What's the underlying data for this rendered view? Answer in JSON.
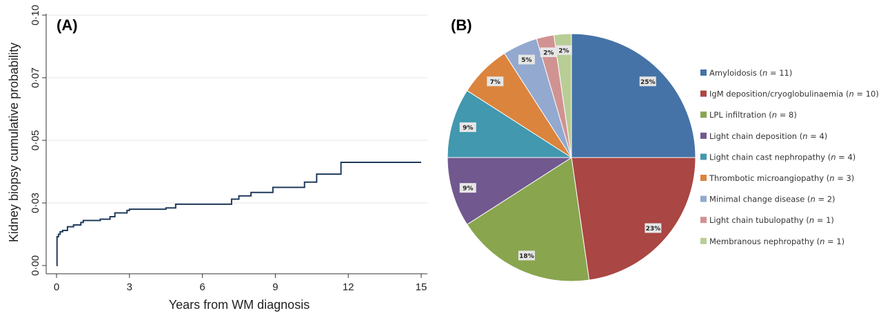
{
  "chart_data": [
    {
      "type": "line",
      "panel_label": "(A)",
      "title": "",
      "xlabel": "Years from WM diagnosis",
      "ylabel": "Kidney biopsy cumulative probability",
      "xlim": [
        0,
        15
      ],
      "ylim": [
        0,
        0.1
      ],
      "x_ticks": [
        0,
        3,
        6,
        9,
        12,
        15
      ],
      "x_tick_labels": [
        "0",
        "3",
        "6",
        "9",
        "12",
        "15"
      ],
      "y_ticks": [
        0,
        0.025,
        0.05,
        0.075,
        0.1
      ],
      "y_tick_labels": [
        "0·00",
        "0·03",
        "0·05",
        "0·07",
        "0·10"
      ],
      "grid": "horizontal",
      "color": "#1f3a5a",
      "step_points": [
        [
          0,
          0
        ],
        [
          0.02,
          0.0115
        ],
        [
          0.08,
          0.0125
        ],
        [
          0.15,
          0.0135
        ],
        [
          0.25,
          0.014
        ],
        [
          0.45,
          0.0155
        ],
        [
          0.7,
          0.0162
        ],
        [
          1.0,
          0.0172
        ],
        [
          1.1,
          0.018
        ],
        [
          1.8,
          0.0185
        ],
        [
          2.2,
          0.0195
        ],
        [
          2.4,
          0.021
        ],
        [
          2.9,
          0.022
        ],
        [
          3.0,
          0.0225
        ],
        [
          4.5,
          0.023
        ],
        [
          4.9,
          0.0245
        ],
        [
          7.2,
          0.0265
        ],
        [
          7.5,
          0.0278
        ],
        [
          8.0,
          0.0292
        ],
        [
          8.9,
          0.0312
        ],
        [
          10.2,
          0.0333
        ],
        [
          10.7,
          0.0365
        ],
        [
          11.7,
          0.0412
        ],
        [
          15,
          0.0412
        ]
      ]
    },
    {
      "type": "pie",
      "panel_label": "(B)",
      "title": "",
      "slices": [
        {
          "name": "Amyloidosis",
          "n": 11,
          "percent": 25,
          "label": "25%",
          "color": "#4573a7"
        },
        {
          "name": "IgM deposition/cryoglobulinaemia",
          "n": 10,
          "percent": 23,
          "label": "23%",
          "color": "#aa4643"
        },
        {
          "name": "LPL infiltration",
          "n": 8,
          "percent": 18,
          "label": "18%",
          "color": "#89a54e"
        },
        {
          "name": "Light chain deposition",
          "n": 4,
          "percent": 9,
          "label": "9%",
          "color": "#71588f"
        },
        {
          "name": "Light chain cast nephropathy",
          "n": 4,
          "percent": 9,
          "label": "9%",
          "color": "#4198af"
        },
        {
          "name": "Thrombotic microangiopathy",
          "n": 3,
          "percent": 7,
          "label": "7%",
          "color": "#db843d"
        },
        {
          "name": "Minimal change disease",
          "n": 2,
          "percent": 5,
          "label": "5%",
          "color": "#93a9cf"
        },
        {
          "name": "Light chain tubulopathy",
          "n": 1,
          "percent": 2,
          "label": "2%",
          "color": "#d19392"
        },
        {
          "name": "Membranous nephropathy",
          "n": 1,
          "percent": 2,
          "label": "2%",
          "color": "#b9cd96"
        }
      ],
      "legend_position": "right"
    }
  ],
  "legend_n_prefix": "n",
  "legend_n_eq": " = "
}
